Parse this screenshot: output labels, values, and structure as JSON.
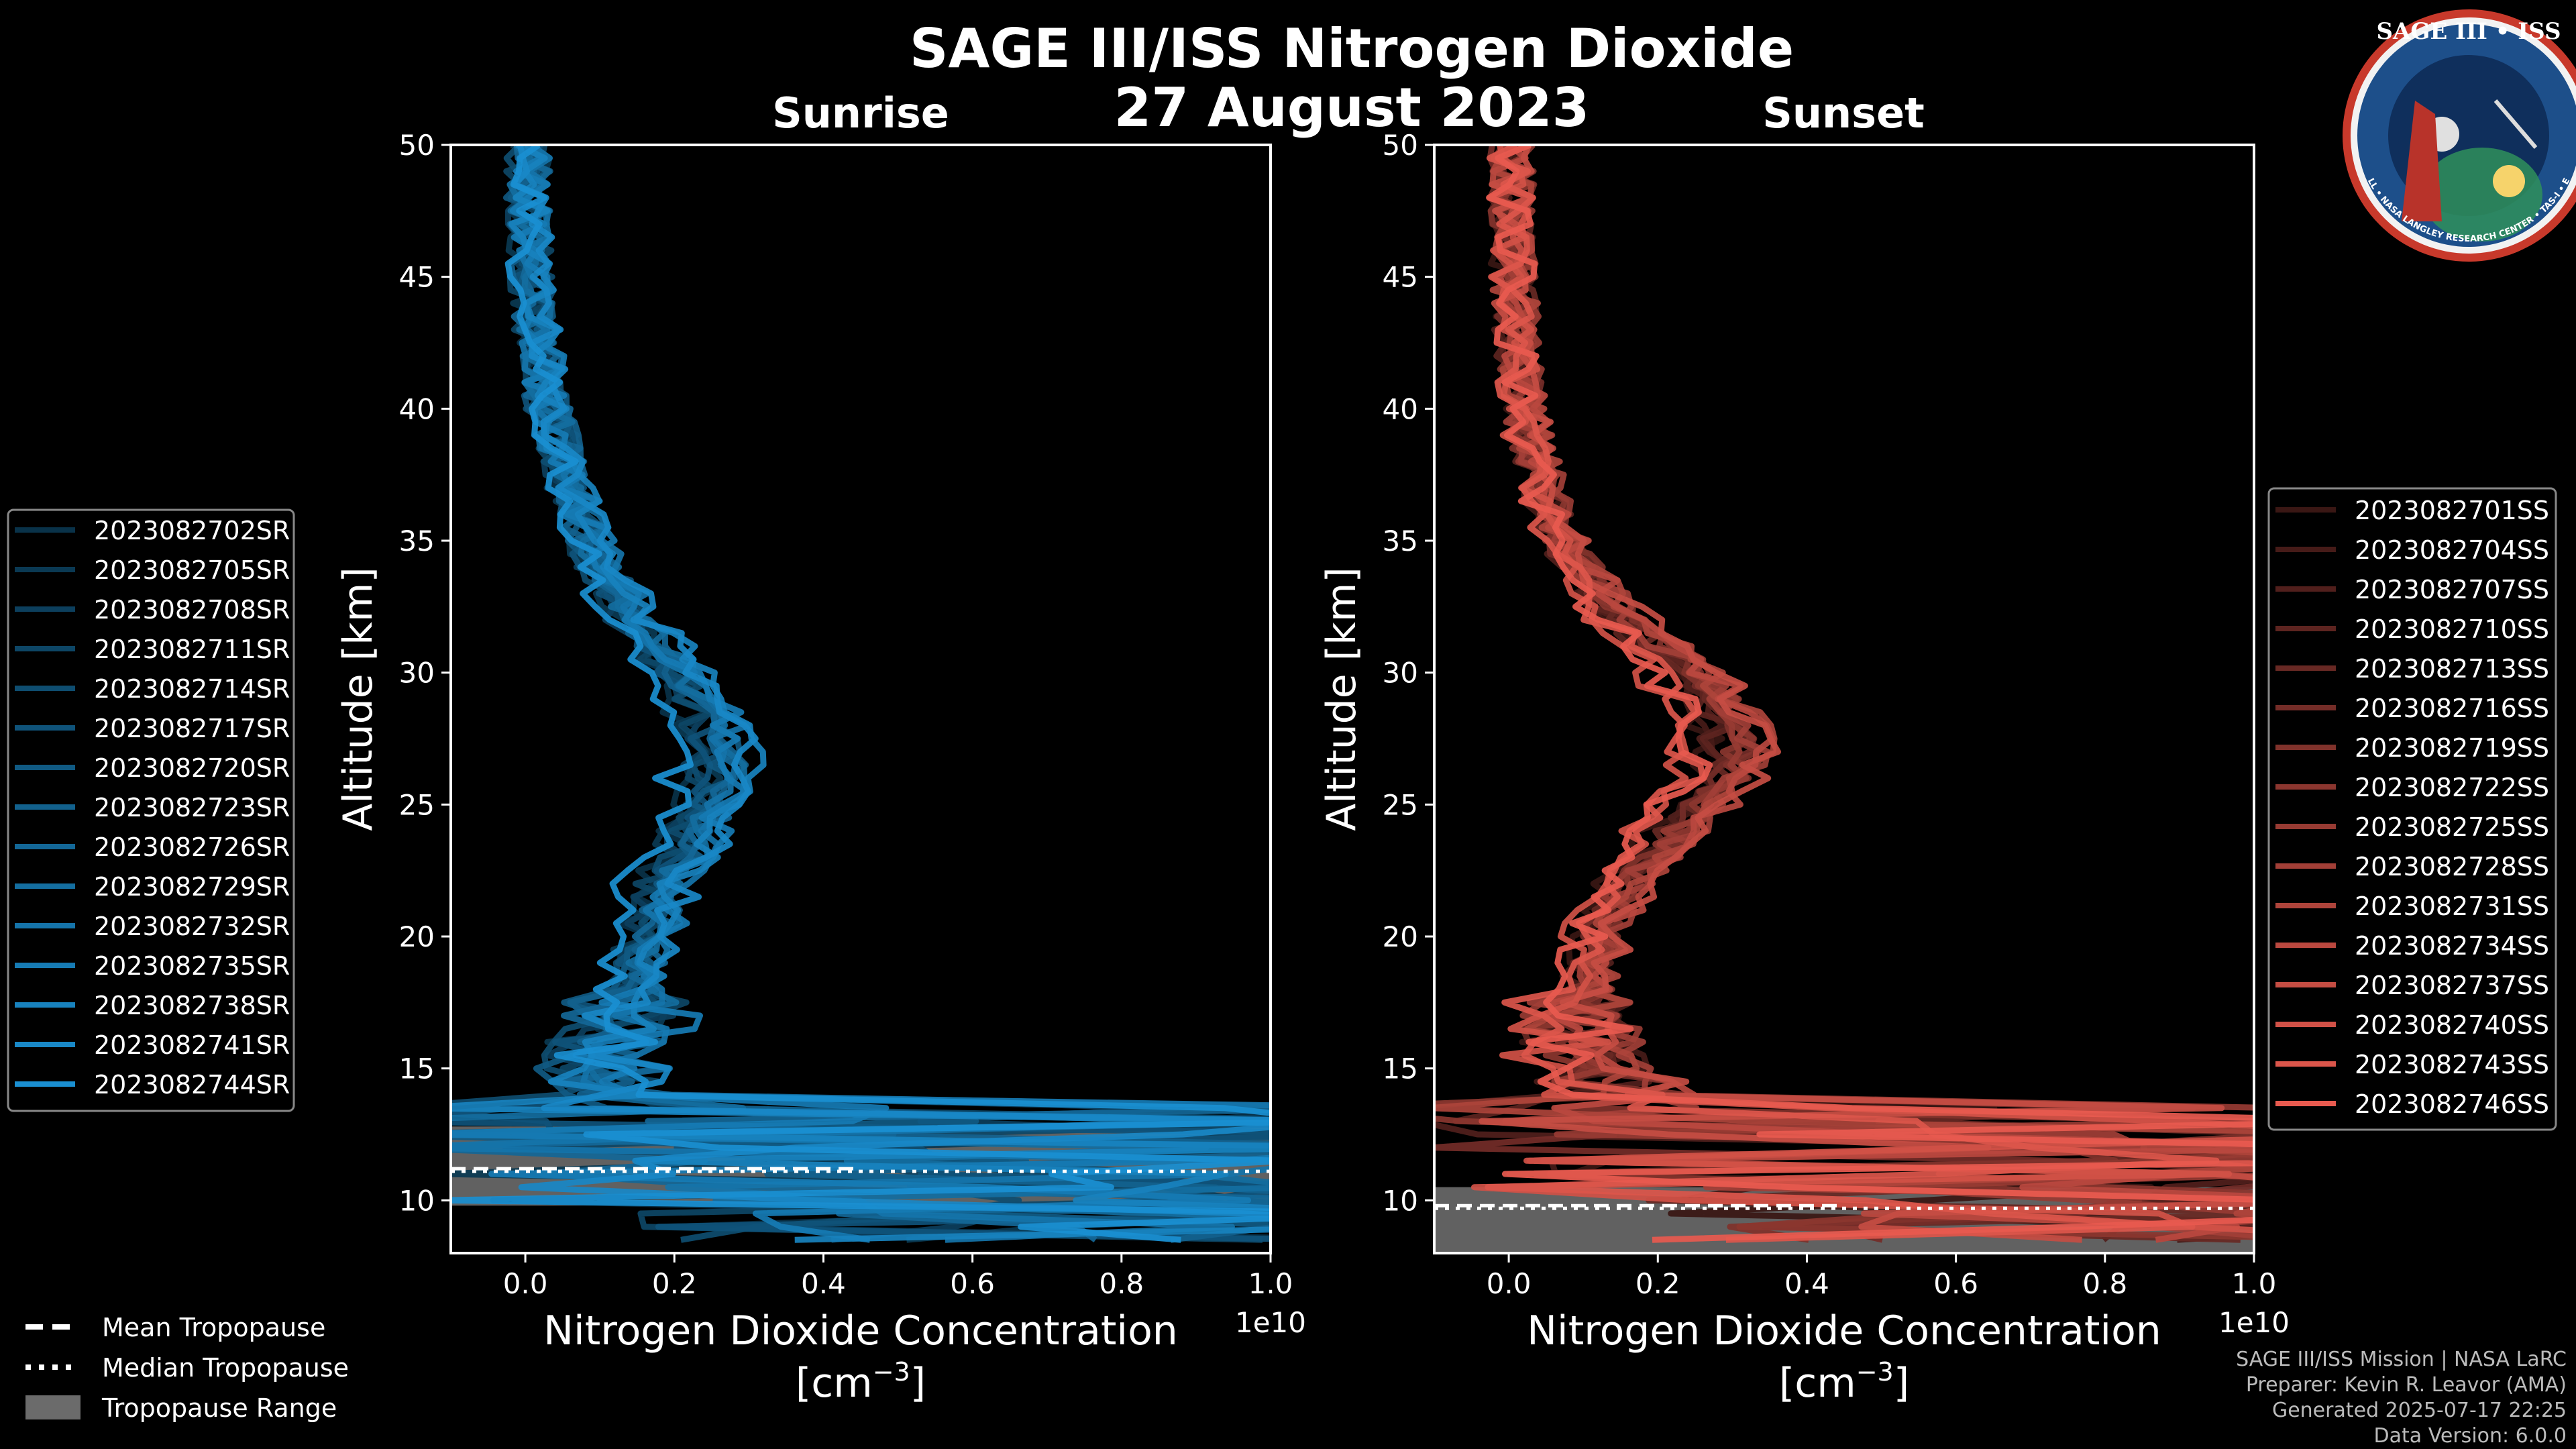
{
  "title": "SAGE III/ISS Nitrogen Dioxide",
  "date": "27 August 2023",
  "logo": {
    "text": "SAGE III • ISS",
    "ring_text": "BALL • NASA LANGLEY RESEARCH CENTER • TAS-I • ESA"
  },
  "colors": {
    "sunrise": "#1a8fd1",
    "sunset": "#e85a4f",
    "tropopause_range": "#6b6b6b"
  },
  "legend_bottom": {
    "mean": "Mean Tropopause",
    "median": "Median Tropopause",
    "range": "Tropopause Range"
  },
  "credits": [
    "SAGE III/ISS Mission | NASA LaRC",
    "Preparer: Kevin R. Leavor (AMA)",
    "Generated 2025-07-17 22:25",
    "Data Version: 6.0.0"
  ],
  "chart_data": [
    {
      "type": "line",
      "title": "Sunrise",
      "xlabel": "Nitrogen Dioxide Concentration",
      "xlabel_unit": "[cm",
      "xlabel_exp": "−3",
      "xlabel_unit_close": "]",
      "ylabel": "Altitude [km]",
      "x_multiplier": "1e10",
      "xlim": [
        -0.1,
        1.0
      ],
      "ylim": [
        8,
        50
      ],
      "xticks": [
        "0.0",
        "0.2",
        "0.4",
        "0.6",
        "0.8",
        "1.0"
      ],
      "xtick_values": [
        0.0,
        0.2,
        0.4,
        0.6,
        0.8,
        1.0
      ],
      "yticks": [
        "10",
        "15",
        "20",
        "25",
        "30",
        "35",
        "40",
        "45",
        "50"
      ],
      "ytick_values": [
        10,
        15,
        20,
        25,
        30,
        35,
        40,
        45,
        50
      ],
      "tropopause": {
        "mean": 11.2,
        "median": 11.2,
        "range": [
          9.8,
          12.8
        ]
      },
      "mean_profile": {
        "altitude": [
          9,
          10,
          11,
          12,
          13,
          14,
          15,
          16,
          17,
          18,
          19,
          20,
          21,
          22,
          23,
          24,
          25,
          26,
          27,
          28,
          29,
          30,
          31,
          32,
          33,
          34,
          35,
          36,
          37,
          38,
          39,
          40,
          41,
          42,
          43,
          44,
          45,
          46,
          47,
          48,
          49,
          50
        ],
        "value": [
          0.6,
          0.45,
          0.35,
          0.25,
          0.15,
          0.1,
          0.1,
          0.12,
          0.13,
          0.14,
          0.15,
          0.16,
          0.17,
          0.18,
          0.2,
          0.22,
          0.24,
          0.25,
          0.25,
          0.24,
          0.22,
          0.2,
          0.17,
          0.14,
          0.12,
          0.1,
          0.08,
          0.07,
          0.06,
          0.05,
          0.04,
          0.03,
          0.025,
          0.02,
          0.015,
          0.01,
          0.008,
          0.006,
          0.005,
          0.004,
          0.004,
          0.004
        ]
      },
      "series": [
        "2023082702SR",
        "2023082705SR",
        "2023082708SR",
        "2023082711SR",
        "2023082714SR",
        "2023082717SR",
        "2023082720SR",
        "2023082723SR",
        "2023082726SR",
        "2023082729SR",
        "2023082732SR",
        "2023082735SR",
        "2023082738SR",
        "2023082741SR",
        "2023082744SR"
      ]
    },
    {
      "type": "line",
      "title": "Sunset",
      "xlabel": "Nitrogen Dioxide Concentration",
      "xlabel_unit": "[cm",
      "xlabel_exp": "−3",
      "xlabel_unit_close": "]",
      "ylabel": "Altitude [km]",
      "x_multiplier": "1e10",
      "xlim": [
        -0.1,
        1.0
      ],
      "ylim": [
        8,
        50
      ],
      "xticks": [
        "0.0",
        "0.2",
        "0.4",
        "0.6",
        "0.8",
        "1.0"
      ],
      "xtick_values": [
        0.0,
        0.2,
        0.4,
        0.6,
        0.8,
        1.0
      ],
      "yticks": [
        "10",
        "15",
        "20",
        "25",
        "30",
        "35",
        "40",
        "45",
        "50"
      ],
      "ytick_values": [
        10,
        15,
        20,
        25,
        30,
        35,
        40,
        45,
        50
      ],
      "tropopause": {
        "mean": 9.8,
        "median": 9.8,
        "range": [
          8.0,
          10.5
        ]
      },
      "mean_profile": {
        "altitude": [
          9,
          10,
          11,
          12,
          13,
          14,
          15,
          16,
          17,
          18,
          19,
          20,
          21,
          22,
          23,
          24,
          25,
          26,
          27,
          28,
          29,
          30,
          31,
          32,
          33,
          34,
          35,
          36,
          37,
          38,
          39,
          40,
          41,
          42,
          43,
          44,
          45,
          46,
          47,
          48,
          49,
          50
        ],
        "value": [
          0.7,
          0.55,
          0.45,
          0.35,
          0.25,
          0.15,
          0.1,
          0.09,
          0.09,
          0.1,
          0.11,
          0.12,
          0.13,
          0.15,
          0.18,
          0.21,
          0.25,
          0.28,
          0.29,
          0.28,
          0.26,
          0.23,
          0.19,
          0.15,
          0.12,
          0.09,
          0.07,
          0.055,
          0.045,
          0.035,
          0.025,
          0.02,
          0.015,
          0.012,
          0.01,
          0.008,
          0.006,
          0.005,
          0.004,
          0.004,
          0.004,
          0.004
        ]
      },
      "series": [
        "2023082701SS",
        "2023082704SS",
        "2023082707SS",
        "2023082710SS",
        "2023082713SS",
        "2023082716SS",
        "2023082719SS",
        "2023082722SS",
        "2023082725SS",
        "2023082728SS",
        "2023082731SS",
        "2023082734SS",
        "2023082737SS",
        "2023082740SS",
        "2023082743SS",
        "2023082746SS"
      ]
    }
  ]
}
